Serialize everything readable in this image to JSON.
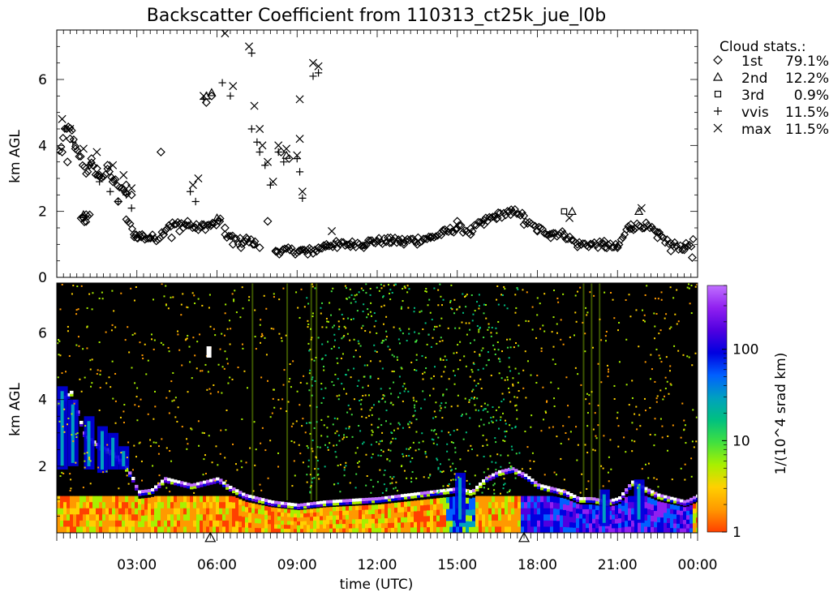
{
  "figure": {
    "title": "Backscatter Coefficient from 110313_ct25k_jue_l0b",
    "xlabel": "time (UTC)",
    "x_ticks": [
      "03:00",
      "06:00",
      "09:00",
      "12:00",
      "15:00",
      "18:00",
      "21:00",
      "00:00"
    ]
  },
  "chart_data": [
    {
      "type": "scatter",
      "ylabel": "km AGL",
      "x_unit": "hours UTC",
      "xlim": [
        0,
        24
      ],
      "ylim": [
        0,
        7.5
      ],
      "y_ticks": [
        "0",
        "2",
        "4",
        "6"
      ],
      "legend_title": "Cloud stats.:",
      "legend_placement": "right",
      "series": [
        {
          "name": "1st 79.1%",
          "label": "1st",
          "pct": "79.1%",
          "marker": "diamond",
          "points": [
            [
              0.2,
              3.8
            ],
            [
              0.4,
              3.5
            ],
            [
              0.5,
              4.2
            ],
            [
              0.7,
              3.9
            ],
            [
              1.0,
              1.8
            ],
            [
              1.1,
              1.9
            ],
            [
              1.3,
              3.6
            ],
            [
              1.5,
              3.3
            ],
            [
              1.6,
              3.1
            ],
            [
              1.9,
              3.4
            ],
            [
              2.1,
              2.9
            ],
            [
              2.3,
              2.3
            ],
            [
              2.6,
              2.8
            ],
            [
              2.8,
              2.5
            ],
            [
              2.9,
              1.3
            ],
            [
              3.0,
              1.2
            ],
            [
              3.2,
              1.3
            ],
            [
              3.5,
              1.2
            ],
            [
              3.9,
              3.8
            ],
            [
              4.0,
              1.3
            ],
            [
              4.3,
              1.2
            ],
            [
              4.6,
              1.4
            ],
            [
              4.9,
              1.7
            ],
            [
              5.2,
              1.5
            ],
            [
              5.5,
              1.6
            ],
            [
              5.8,
              1.6
            ],
            [
              5.6,
              5.3
            ],
            [
              5.8,
              5.5
            ],
            [
              6.1,
              1.7
            ],
            [
              6.3,
              1.5
            ],
            [
              6.6,
              1.0
            ],
            [
              6.9,
              0.9
            ],
            [
              7.1,
              1.2
            ],
            [
              7.4,
              1.0
            ],
            [
              7.6,
              0.9
            ],
            [
              7.9,
              1.7
            ],
            [
              8.2,
              0.8
            ],
            [
              8.4,
              3.8
            ],
            [
              8.7,
              3.6
            ],
            [
              9.1,
              0.8
            ],
            [
              9.4,
              0.7
            ],
            [
              9.8,
              0.9
            ],
            [
              10.1,
              1.0
            ],
            [
              10.5,
              0.9
            ],
            [
              11.0,
              1.0
            ],
            [
              11.5,
              0.9
            ],
            [
              12.0,
              1.1
            ],
            [
              12.5,
              1.2
            ],
            [
              13.0,
              1.0
            ],
            [
              13.5,
              1.0
            ],
            [
              14.0,
              1.2
            ],
            [
              14.5,
              1.4
            ],
            [
              15.0,
              1.7
            ],
            [
              15.5,
              1.3
            ],
            [
              16.0,
              1.6
            ],
            [
              16.5,
              1.8
            ],
            [
              17.0,
              1.9
            ],
            [
              17.5,
              1.6
            ],
            [
              18.0,
              1.4
            ],
            [
              18.5,
              1.2
            ],
            [
              19.0,
              1.3
            ],
            [
              19.5,
              1.0
            ],
            [
              20.0,
              1.0
            ],
            [
              20.5,
              1.1
            ],
            [
              21.0,
              0.9
            ],
            [
              21.5,
              1.6
            ],
            [
              22.0,
              1.5
            ],
            [
              22.5,
              1.2
            ],
            [
              23.0,
              0.8
            ],
            [
              23.5,
              0.9
            ],
            [
              23.8,
              0.6
            ]
          ],
          "dense_tracks": [
            [
              [
                0.1,
                3.8
              ],
              [
                0.3,
                4.4
              ],
              [
                0.5,
                4.6
              ],
              [
                0.7,
                3.9
              ],
              [
                0.9,
                3.6
              ],
              [
                1.1,
                3.2
              ],
              [
                1.3,
                3.4
              ],
              [
                1.6,
                3.0
              ],
              [
                1.9,
                3.2
              ],
              [
                2.2,
                2.9
              ],
              [
                2.5,
                2.7
              ],
              [
                2.7,
                2.3
              ]
            ],
            [
              [
                0.9,
                1.8
              ],
              [
                1.1,
                1.7
              ],
              [
                1.3,
                1.9
              ]
            ],
            [
              [
                2.6,
                1.8
              ],
              [
                2.9,
                1.3
              ],
              [
                3.3,
                1.2
              ],
              [
                3.8,
                1.2
              ],
              [
                4.2,
                1.6
              ],
              [
                4.8,
                1.6
              ],
              [
                5.3,
                1.5
              ],
              [
                5.9,
                1.6
              ],
              [
                6.2,
                1.7
              ]
            ],
            [
              [
                6.3,
                1.3
              ],
              [
                6.8,
                1.1
              ],
              [
                7.2,
                1.1
              ],
              [
                7.5,
                1.0
              ]
            ],
            [
              [
                8.2,
                0.8
              ],
              [
                9.0,
                0.8
              ],
              [
                9.6,
                0.8
              ],
              [
                10.2,
                1.0
              ],
              [
                11.0,
                1.0
              ],
              [
                12.0,
                1.1
              ],
              [
                13.0,
                1.1
              ],
              [
                14.0,
                1.2
              ],
              [
                15.0,
                1.5
              ],
              [
                15.5,
                1.4
              ],
              [
                16.0,
                1.7
              ],
              [
                16.6,
                1.9
              ],
              [
                17.3,
                2.0
              ],
              [
                17.7,
                1.6
              ],
              [
                18.2,
                1.4
              ],
              [
                19.0,
                1.3
              ],
              [
                19.5,
                1.0
              ],
              [
                20.2,
                1.0
              ],
              [
                21.0,
                0.9
              ],
              [
                21.4,
                1.5
              ],
              [
                22.0,
                1.6
              ],
              [
                22.5,
                1.3
              ],
              [
                23.0,
                1.0
              ],
              [
                23.5,
                0.9
              ],
              [
                23.9,
                1.1
              ]
            ]
          ]
        },
        {
          "name": "2nd 12.2%",
          "label": "2nd",
          "pct": "12.2%",
          "marker": "triangle",
          "points": [
            [
              1.0,
              1.9
            ],
            [
              5.6,
              5.5
            ],
            [
              5.8,
              5.6
            ],
            [
              19.3,
              2.0
            ],
            [
              21.8,
              2.0
            ],
            [
              6.0,
              1.8
            ],
            [
              8.6,
              3.7
            ]
          ]
        },
        {
          "name": "3rd 0.9%",
          "label": "3rd",
          "pct": "0.9%",
          "marker": "square",
          "points": [
            [
              19.0,
              2.0
            ]
          ]
        },
        {
          "name": "vvis 11.5%",
          "label": "vvis",
          "pct": "11.5%",
          "marker": "plus",
          "points": [
            [
              0.3,
              4.5
            ],
            [
              0.6,
              4.1
            ],
            [
              1.2,
              3.4
            ],
            [
              1.6,
              2.9
            ],
            [
              2.0,
              2.6
            ],
            [
              2.3,
              2.3
            ],
            [
              2.6,
              2.5
            ],
            [
              2.8,
              2.1
            ],
            [
              5.0,
              2.6
            ],
            [
              5.2,
              2.3
            ],
            [
              5.5,
              5.4
            ],
            [
              6.2,
              5.9
            ],
            [
              6.5,
              5.5
            ],
            [
              7.3,
              6.8
            ],
            [
              7.3,
              4.5
            ],
            [
              7.5,
              4.1
            ],
            [
              7.6,
              3.8
            ],
            [
              7.8,
              3.4
            ],
            [
              8.0,
              2.8
            ],
            [
              8.3,
              3.8
            ],
            [
              8.5,
              3.5
            ],
            [
              9.0,
              3.6
            ],
            [
              9.1,
              3.2
            ],
            [
              9.2,
              2.4
            ],
            [
              9.6,
              6.1
            ],
            [
              9.8,
              6.2
            ]
          ]
        },
        {
          "name": "max 11.5%",
          "label": "max",
          "pct": "11.5%",
          "marker": "x",
          "points": [
            [
              0.2,
              4.8
            ],
            [
              0.5,
              4.5
            ],
            [
              1.0,
              3.9
            ],
            [
              1.5,
              3.8
            ],
            [
              2.1,
              3.4
            ],
            [
              2.5,
              3.1
            ],
            [
              2.8,
              2.7
            ],
            [
              5.1,
              2.8
            ],
            [
              5.3,
              3.0
            ],
            [
              5.5,
              5.5
            ],
            [
              6.3,
              7.4
            ],
            [
              6.6,
              5.8
            ],
            [
              7.2,
              7.0
            ],
            [
              7.4,
              5.2
            ],
            [
              7.6,
              4.5
            ],
            [
              7.7,
              4.0
            ],
            [
              7.9,
              3.5
            ],
            [
              8.1,
              2.9
            ],
            [
              8.3,
              4.0
            ],
            [
              8.6,
              3.9
            ],
            [
              9.0,
              3.7
            ],
            [
              9.1,
              5.4
            ],
            [
              9.1,
              4.2
            ],
            [
              9.2,
              2.6
            ],
            [
              9.6,
              6.5
            ],
            [
              9.8,
              6.4
            ],
            [
              10.3,
              1.4
            ],
            [
              21.9,
              2.1
            ],
            [
              19.2,
              1.8
            ]
          ]
        }
      ]
    },
    {
      "type": "heatmap",
      "ylabel": "km AGL",
      "x_unit": "hours UTC",
      "xlim": [
        0,
        24
      ],
      "ylim": [
        0,
        7.5
      ],
      "y_ticks": [
        "2",
        "4",
        "6"
      ],
      "colorbar": {
        "label": "1/(10^4 srad km)",
        "scale": "log",
        "range": [
          1,
          500
        ],
        "ticks": [
          "1",
          "10",
          "100"
        ],
        "colors": [
          "#ff4000",
          "#ff9900",
          "#ffd000",
          "#a8f000",
          "#40e040",
          "#00c080",
          "#00a0c0",
          "#0060ff",
          "#0000e0",
          "#5000e0",
          "#9020f0",
          "#c070ff"
        ]
      },
      "background_color": "#000000",
      "cloud_base_km": [
        [
          0.0,
          3.9
        ],
        [
          0.5,
          4.2
        ],
        [
          1.0,
          2.9
        ],
        [
          1.5,
          2.6
        ],
        [
          2.0,
          2.4
        ],
        [
          2.5,
          2.0
        ],
        [
          2.8,
          1.6
        ],
        [
          3.0,
          1.2
        ],
        [
          3.5,
          1.25
        ],
        [
          4.0,
          1.6
        ],
        [
          4.5,
          1.5
        ],
        [
          5.0,
          1.4
        ],
        [
          5.5,
          1.5
        ],
        [
          6.0,
          1.6
        ],
        [
          6.3,
          1.4
        ],
        [
          7.0,
          1.1
        ],
        [
          8.0,
          0.9
        ],
        [
          9.0,
          0.8
        ],
        [
          10.0,
          0.9
        ],
        [
          11.0,
          0.95
        ],
        [
          12.0,
          1.0
        ],
        [
          13.0,
          1.1
        ],
        [
          14.0,
          1.2
        ],
        [
          15.0,
          1.3
        ],
        [
          15.5,
          1.2
        ],
        [
          16.0,
          1.6
        ],
        [
          16.5,
          1.8
        ],
        [
          17.0,
          1.9
        ],
        [
          17.5,
          1.7
        ],
        [
          18.0,
          1.4
        ],
        [
          18.5,
          1.3
        ],
        [
          19.0,
          1.2
        ],
        [
          19.5,
          1.0
        ],
        [
          20.0,
          1.0
        ],
        [
          20.5,
          0.9
        ],
        [
          21.0,
          1.0
        ],
        [
          21.5,
          1.5
        ],
        [
          22.0,
          1.3
        ],
        [
          22.5,
          1.1
        ],
        [
          23.0,
          1.0
        ],
        [
          23.5,
          0.9
        ],
        [
          24.0,
          1.1
        ]
      ],
      "precip_markers": [
        {
          "time": "06:00",
          "hours": 5.75,
          "marker": "triangle"
        },
        {
          "time": "18:00",
          "hours": 17.5,
          "marker": "triangle"
        }
      ]
    }
  ]
}
